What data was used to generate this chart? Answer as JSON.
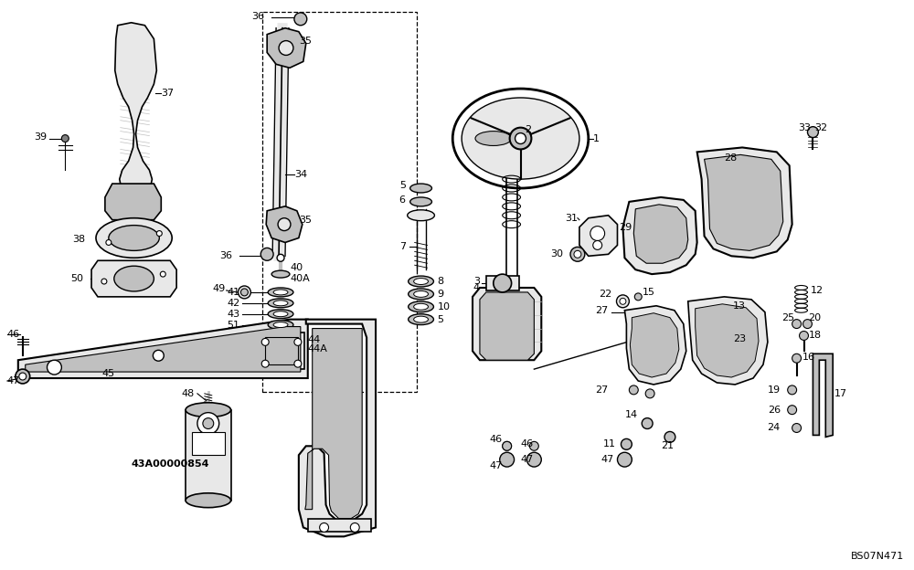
{
  "bg_color": "#ffffff",
  "line_color": "#000000",
  "callout_ref": "BS07N471",
  "part_label": "43A00000854",
  "fig_width": 10.0,
  "fig_height": 6.24,
  "dpi": 100,
  "lw_main": 1.2,
  "lw_thin": 0.7,
  "gray_light": "#e8e8e8",
  "gray_mid": "#c0c0c0",
  "gray_dark": "#808080"
}
